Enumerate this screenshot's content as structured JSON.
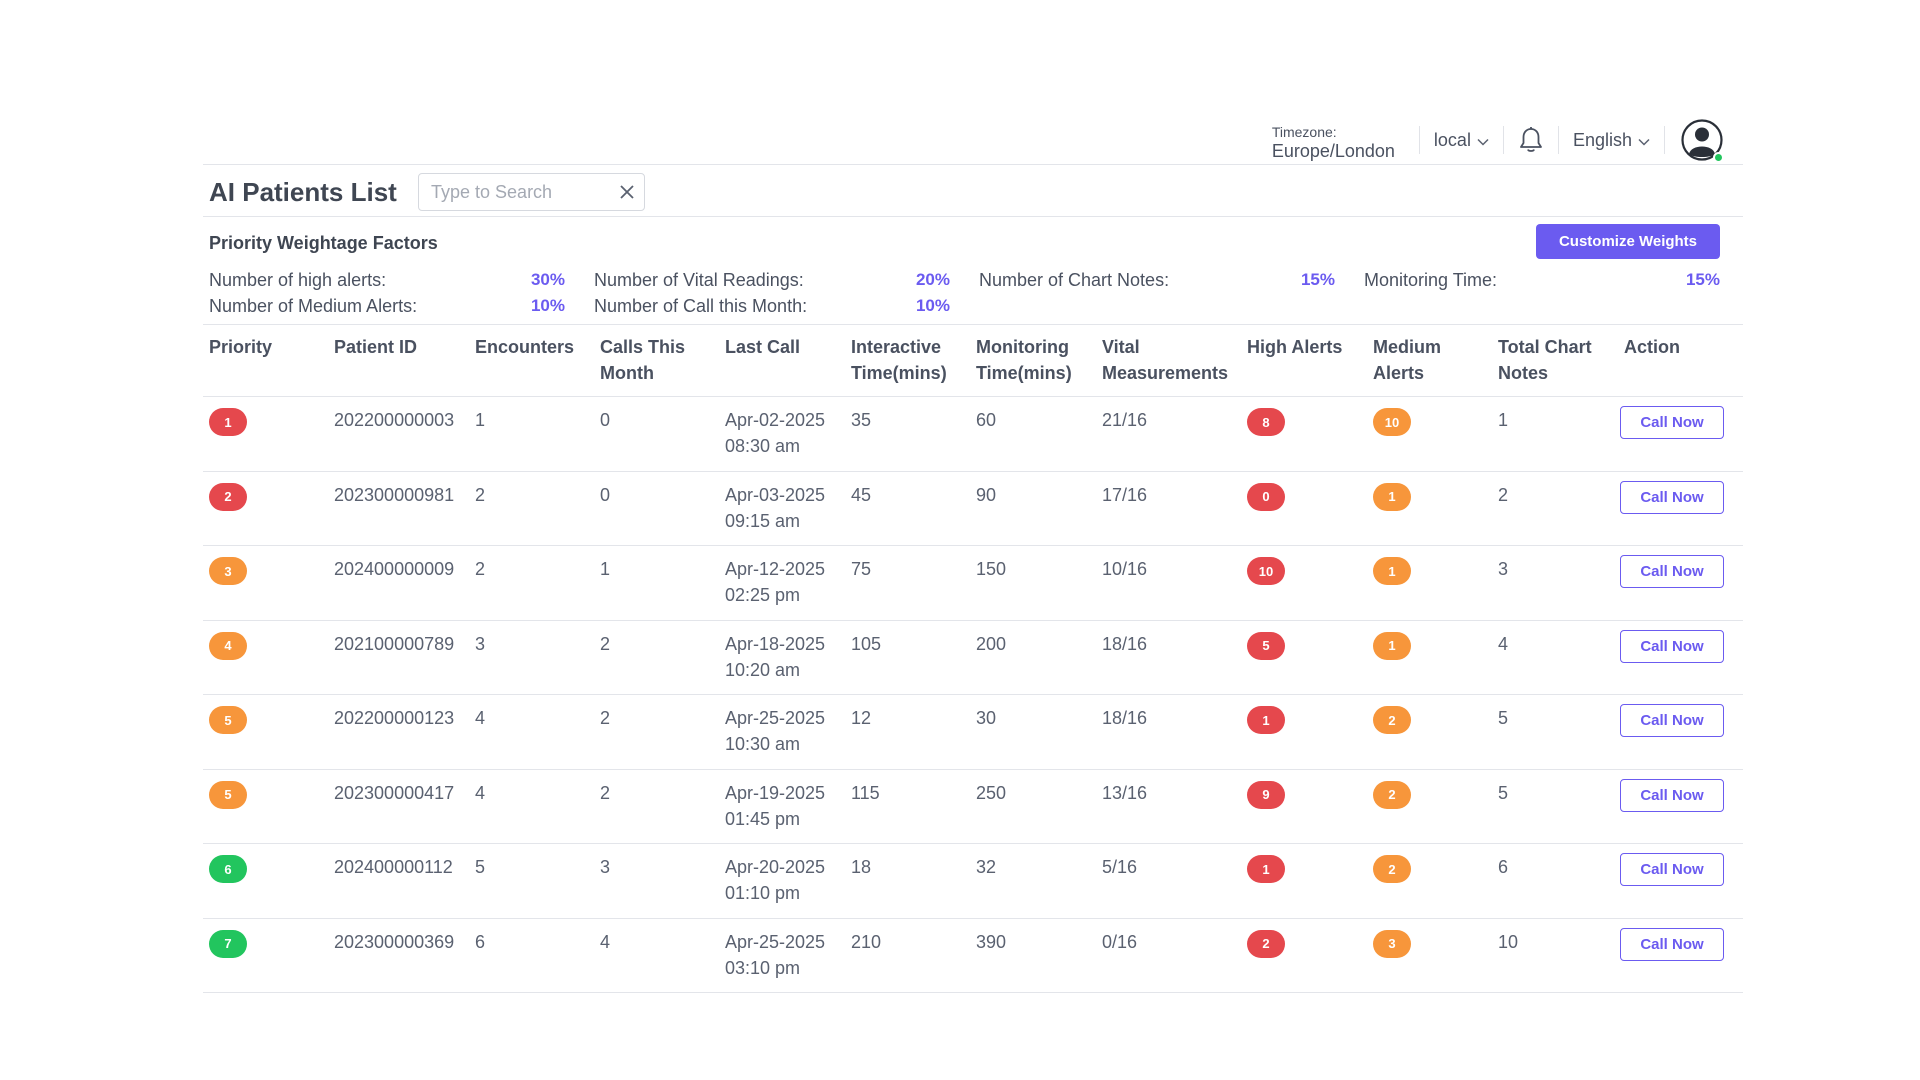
{
  "header": {
    "timezone_label": "Timezone:",
    "timezone_value": "Europe/London",
    "timezone_mode": "local",
    "language": "English",
    "bell_icon": "bell-icon",
    "avatar_icon": "user-avatar-icon"
  },
  "page": {
    "title": "AI Patients List",
    "search_placeholder": "Type to Search"
  },
  "weights": {
    "title": "Priority Weightage Factors",
    "customize_label": "Customize Weights",
    "factors": [
      {
        "label": "Number of high alerts:",
        "value": "30%"
      },
      {
        "label": "Number of Medium Alerts:",
        "value": "10%"
      },
      {
        "label": "Number of Vital Readings:",
        "value": "20%"
      },
      {
        "label": "Number of Call this Month:",
        "value": "10%"
      },
      {
        "label": "Number of Chart Notes:",
        "value": "15%"
      },
      {
        "label": "Monitoring Time:",
        "value": "15%"
      }
    ]
  },
  "colors": {
    "accent": "#6b5bf0",
    "red": "#e5484d",
    "orange": "#f7963b",
    "green": "#22c55e"
  },
  "table": {
    "columns": [
      {
        "l1": "Priority",
        "l2": ""
      },
      {
        "l1": "Patient ID",
        "l2": ""
      },
      {
        "l1": "Encounters",
        "l2": ""
      },
      {
        "l1": "Calls This",
        "l2": "Month"
      },
      {
        "l1": "Last Call",
        "l2": ""
      },
      {
        "l1": "Interactive",
        "l2": "Time(mins)"
      },
      {
        "l1": "Monitoring",
        "l2": "Time(mins)"
      },
      {
        "l1": "Vital",
        "l2": "Measurements"
      },
      {
        "l1": "High Alerts",
        "l2": ""
      },
      {
        "l1": "Medium",
        "l2": "Alerts"
      },
      {
        "l1": "Total Chart",
        "l2": "Notes"
      },
      {
        "l1": "Action",
        "l2": ""
      }
    ],
    "action_label": "Call Now",
    "rows": [
      {
        "priority": "1",
        "priority_color": "red",
        "patient_id": "202200000003",
        "encounters": "1",
        "calls": "0",
        "date": "Apr-02-2025",
        "time": "08:30 am",
        "interactive": "35",
        "monitoring": "60",
        "vitals": "21/16",
        "high": "8",
        "medium": "10",
        "notes": "1"
      },
      {
        "priority": "2",
        "priority_color": "red",
        "patient_id": "202300000981",
        "encounters": "2",
        "calls": "0",
        "date": "Apr-03-2025",
        "time": "09:15 am",
        "interactive": "45",
        "monitoring": "90",
        "vitals": "17/16",
        "high": "0",
        "medium": "1",
        "notes": "2"
      },
      {
        "priority": "3",
        "priority_color": "orange",
        "patient_id": "202400000009",
        "encounters": "2",
        "calls": "1",
        "date": "Apr-12-2025",
        "time": "02:25 pm",
        "interactive": "75",
        "monitoring": "150",
        "vitals": "10/16",
        "high": "10",
        "medium": "1",
        "notes": "3"
      },
      {
        "priority": "4",
        "priority_color": "orange",
        "patient_id": "202100000789",
        "encounters": "3",
        "calls": "2",
        "date": "Apr-18-2025",
        "time": "10:20 am",
        "interactive": "105",
        "monitoring": "200",
        "vitals": "18/16",
        "high": "5",
        "medium": "1",
        "notes": "4"
      },
      {
        "priority": "5",
        "priority_color": "orange",
        "patient_id": "202200000123",
        "encounters": "4",
        "calls": "2",
        "date": "Apr-25-2025",
        "time": "10:30 am",
        "interactive": "12",
        "monitoring": "30",
        "vitals": "18/16",
        "high": "1",
        "medium": "2",
        "notes": "5"
      },
      {
        "priority": "5",
        "priority_color": "orange",
        "patient_id": "202300000417",
        "encounters": "4",
        "calls": "2",
        "date": "Apr-19-2025",
        "time": "01:45 pm",
        "interactive": "115",
        "monitoring": "250",
        "vitals": "13/16",
        "high": "9",
        "medium": "2",
        "notes": "5"
      },
      {
        "priority": "6",
        "priority_color": "green",
        "patient_id": "202400000112",
        "encounters": "5",
        "calls": "3",
        "date": "Apr-20-2025",
        "time": "01:10 pm",
        "interactive": "18",
        "monitoring": "32",
        "vitals": "5/16",
        "high": "1",
        "medium": "2",
        "notes": "6"
      },
      {
        "priority": "7",
        "priority_color": "green",
        "patient_id": "202300000369",
        "encounters": "6",
        "calls": "4",
        "date": "Apr-25-2025",
        "time": "03:10 pm",
        "interactive": "210",
        "monitoring": "390",
        "vitals": "0/16",
        "high": "2",
        "medium": "3",
        "notes": "10"
      }
    ]
  }
}
